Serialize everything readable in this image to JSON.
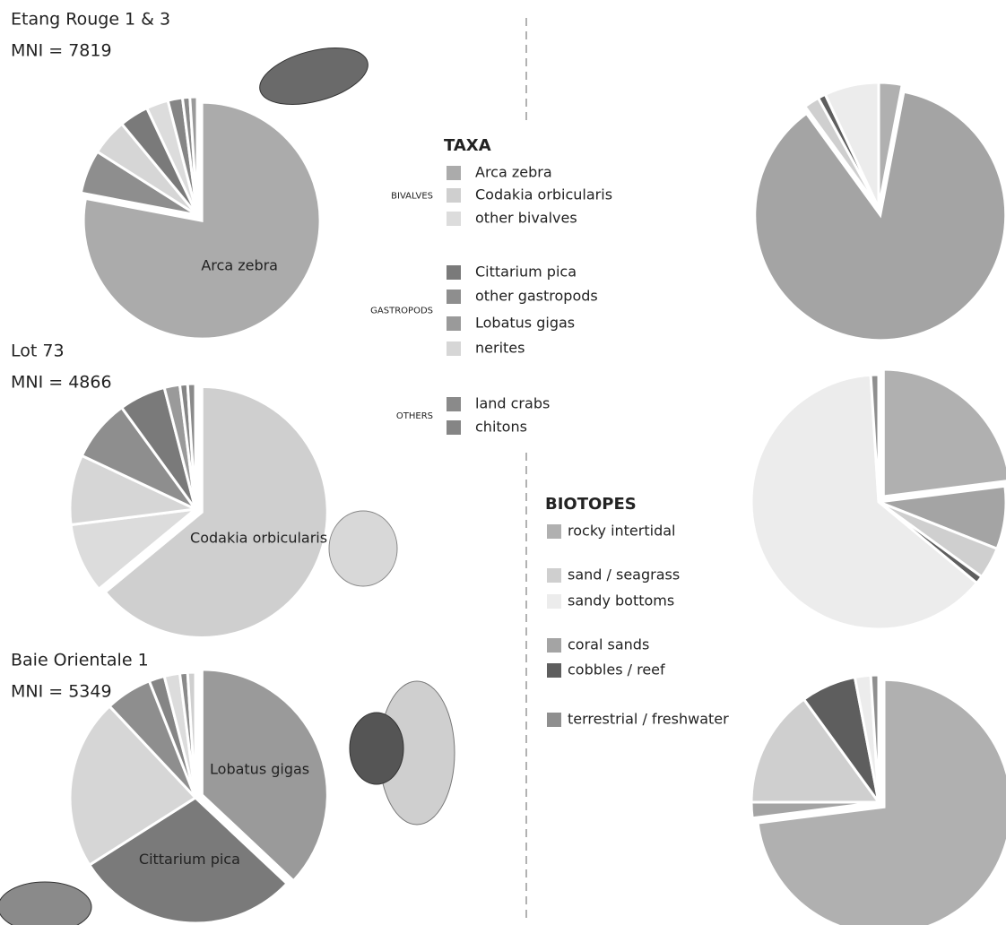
{
  "chart_data": [
    {
      "type": "pie",
      "title": "Etang Rouge 1 & 3",
      "subtitle": "MNI = 7819",
      "categories": [
        "Arca zebra",
        null,
        null,
        null,
        null,
        null,
        null,
        null
      ],
      "values": [
        78,
        6,
        5,
        4,
        3,
        2,
        1,
        1
      ],
      "colors": [
        "#ababab",
        "#8e8e8e",
        "#d6d6d6",
        "#7a7a7a",
        "#dcdcdc",
        "#858585",
        "#8a8a8a",
        "#9a9a9a"
      ]
    },
    {
      "type": "pie",
      "title": "Lot 73",
      "subtitle": "MNI = 4866",
      "categories": [
        "Codakia orbicularis",
        null,
        null,
        null,
        null,
        null,
        null,
        null
      ],
      "values": [
        64,
        9,
        9,
        8,
        6,
        2,
        1,
        1
      ],
      "colors": [
        "#cfcfcf",
        "#dcdcdc",
        "#d6d6d6",
        "#8e8e8e",
        "#7a7a7a",
        "#9a9a9a",
        "#858585",
        "#8a8a8a"
      ]
    },
    {
      "type": "pie",
      "title": "Baie Orientale 1",
      "subtitle": "MNI = 5349",
      "categories": [
        "Lobatus gigas",
        "Cittarium pica",
        null,
        null,
        null,
        null,
        null,
        null
      ],
      "values": [
        37,
        29,
        22,
        6,
        2,
        2,
        1,
        1
      ],
      "colors": [
        "#9a9a9a",
        "#7a7a7a",
        "#d6d6d6",
        "#8e8e8e",
        "#858585",
        "#dcdcdc",
        "#8a8a8a",
        "#cfcfcf"
      ]
    },
    {
      "type": "pie",
      "categories": [
        null,
        null,
        null,
        null,
        null
      ],
      "values": [
        3,
        87,
        2,
        1,
        7
      ],
      "colors": [
        "#b0b0b0",
        "#a4a4a4",
        "#cfcfcf",
        "#5e5e5e",
        "#ececec"
      ]
    },
    {
      "type": "pie",
      "categories": [
        null,
        null,
        null,
        null,
        null,
        null
      ],
      "values": [
        23,
        8,
        4,
        1,
        63,
        1
      ],
      "colors": [
        "#b0b0b0",
        "#a4a4a4",
        "#cfcfcf",
        "#5e5e5e",
        "#ececec",
        "#8f8f8f"
      ]
    },
    {
      "type": "pie",
      "categories": [
        null,
        null,
        null,
        null,
        null,
        null
      ],
      "values": [
        73,
        2,
        15,
        7,
        2,
        1
      ],
      "colors": [
        "#b0b0b0",
        "#a4a4a4",
        "#cfcfcf",
        "#5e5e5e",
        "#ececec",
        "#8f8f8f"
      ]
    }
  ],
  "legends": [
    {
      "title": "TAXA",
      "groups": [
        {
          "label": "BIVALVES",
          "items": [
            {
              "name": "Arca zebra",
              "color": "#ababab"
            },
            {
              "name": "Codakia orbicularis",
              "color": "#cfcfcf"
            },
            {
              "name": "other bivalves",
              "color": "#dcdcdc"
            }
          ]
        },
        {
          "label": "GASTROPODS",
          "items": [
            {
              "name": "Cittarium pica",
              "color": "#7a7a7a"
            },
            {
              "name": "other gastropods",
              "color": "#8e8e8e"
            },
            {
              "name": "Lobatus gigas",
              "color": "#9a9a9a"
            },
            {
              "name": "nerites",
              "color": "#d6d6d6"
            }
          ]
        },
        {
          "label": "OTHERS",
          "items": [
            {
              "name": "land crabs",
              "color": "#8a8a8a"
            },
            {
              "name": "chitons",
              "color": "#858585"
            }
          ]
        }
      ]
    },
    {
      "title": "BIOTOPES",
      "groups": [
        {
          "items": [
            {
              "name": "rocky intertidal",
              "color": "#b0b0b0"
            }
          ]
        },
        {
          "items": [
            {
              "name": "sand / seagrass",
              "color": "#cfcfcf"
            },
            {
              "name": "sandy bottoms",
              "color": "#ececec"
            }
          ]
        },
        {
          "items": [
            {
              "name": "coral sands",
              "color": "#a4a4a4"
            },
            {
              "name": "cobbles / reef",
              "color": "#5e5e5e"
            }
          ]
        },
        {
          "items": [
            {
              "name": "terrestrial / freshwater",
              "color": "#8f8f8f"
            }
          ]
        }
      ]
    }
  ]
}
